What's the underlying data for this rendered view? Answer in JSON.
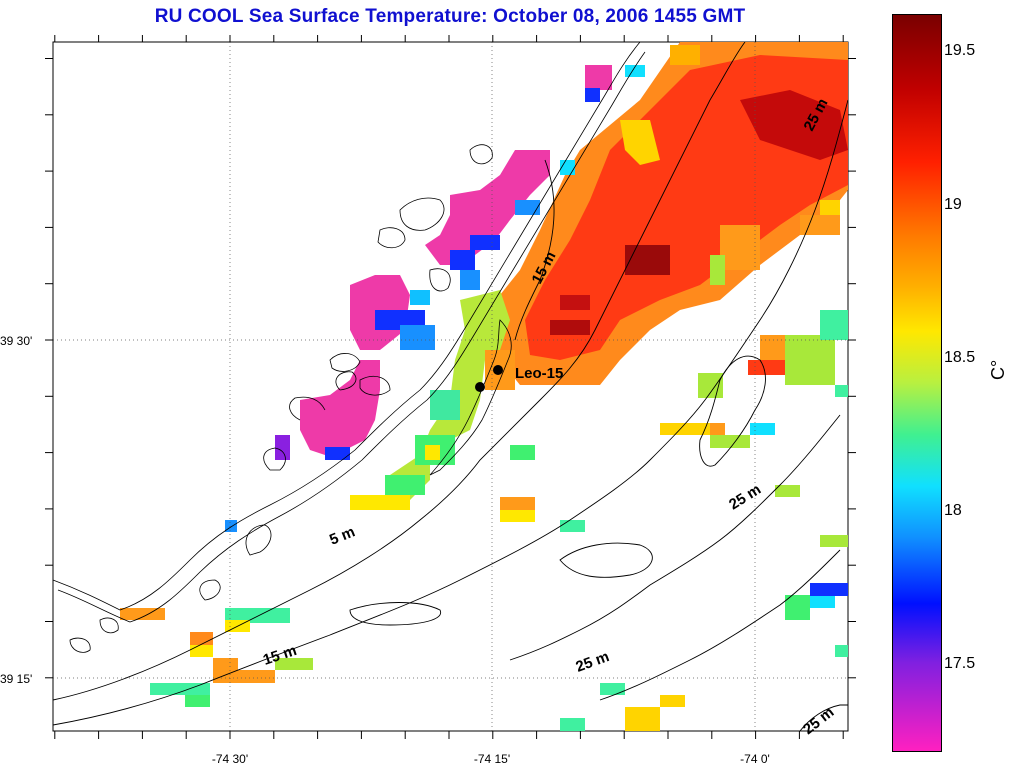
{
  "title": "RU COOL  Sea Surface Temperature:  October 08, 2006 1455 GMT",
  "axes": {
    "x_ticks": [
      "-74 30'",
      "-74 15'",
      "-74 0'"
    ],
    "y_ticks": [
      "39 30'",
      "39 15'"
    ]
  },
  "station": {
    "name": "Leo-15"
  },
  "contour_labels": [
    "5 m",
    "15 m",
    "15 m",
    "25 m",
    "25 m",
    "25 m",
    "25 m"
  ],
  "colorbar": {
    "ticks": [
      "19.5",
      "19",
      "18.5",
      "18",
      "17.5"
    ],
    "unit": "C°",
    "range": [
      17.2,
      19.6
    ]
  },
  "colors": {
    "title": "#1010d0",
    "high": "#7a0000",
    "low": "#ff20c0"
  }
}
